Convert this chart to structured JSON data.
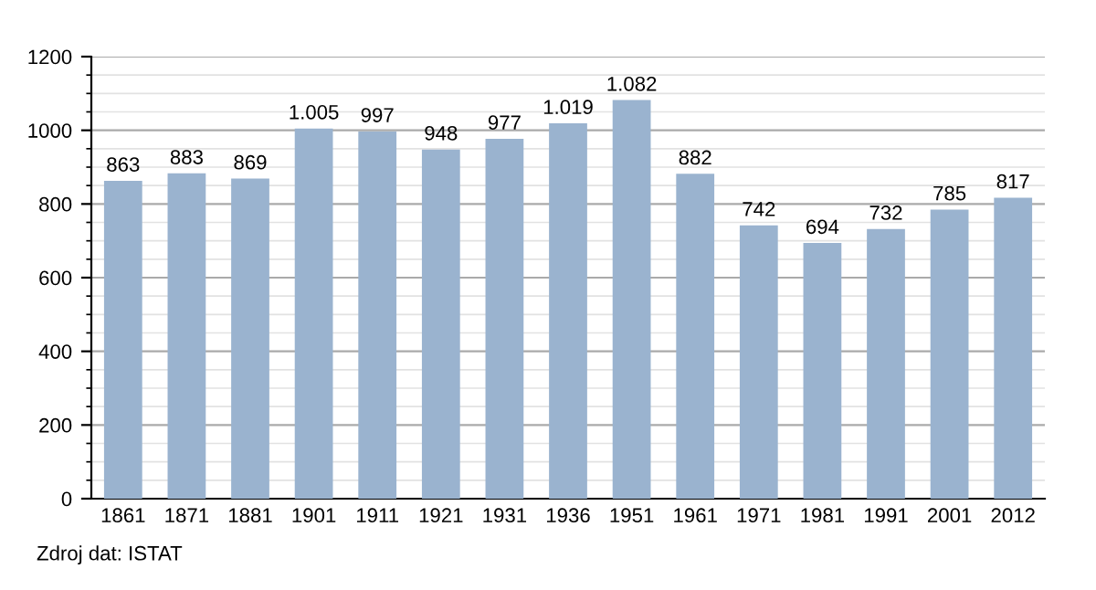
{
  "chart_data": {
    "type": "bar",
    "categories": [
      "1861",
      "1871",
      "1881",
      "1901",
      "1911",
      "1921",
      "1931",
      "1936",
      "1951",
      "1961",
      "1971",
      "1981",
      "1991",
      "2001",
      "2012"
    ],
    "values": [
      863,
      883,
      869,
      1005,
      997,
      948,
      977,
      1019,
      1082,
      882,
      742,
      694,
      732,
      785,
      817
    ],
    "value_labels": [
      "863",
      "883",
      "869",
      "1.005",
      "997",
      "948",
      "977",
      "1.019",
      "1.082",
      "882",
      "742",
      "694",
      "732",
      "785",
      "817"
    ],
    "color": "#9ab3cf",
    "ylim": [
      0,
      1200
    ],
    "yticks": [
      0,
      200,
      400,
      600,
      800,
      1000,
      1200
    ],
    "grid": "y",
    "annotations": [
      "Zdroj dat: ISTAT"
    ]
  }
}
